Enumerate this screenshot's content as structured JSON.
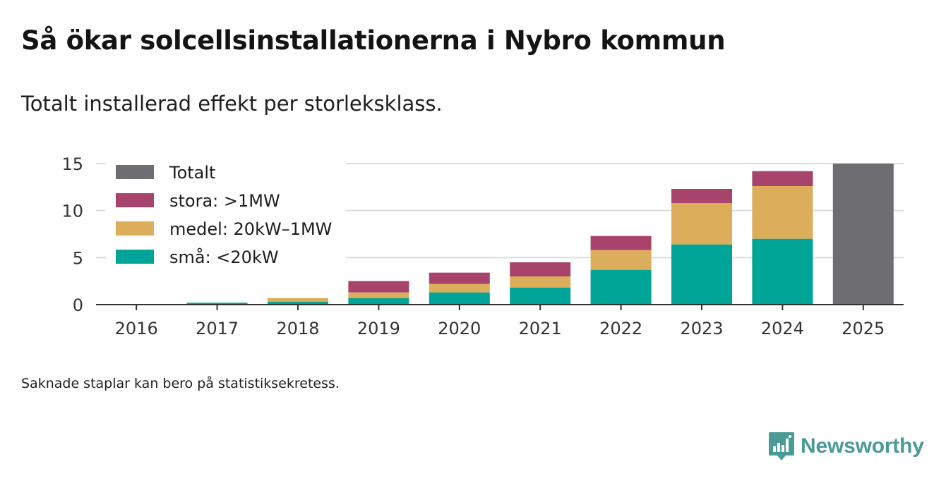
{
  "title": "Så ökar solcellsinstallationerna i Nybro kommun",
  "subtitle": "Totalt installerad effekt per storleksklass.",
  "note": "Saknade staplar kan bero på statistiksekretess.",
  "brand": "Newsworthy",
  "colors": {
    "total": "#6e6d72",
    "large": "#a8436b",
    "medium": "#dcae5c",
    "small": "#00a598",
    "grid": "#dddddd",
    "axis": "#333333",
    "brand": "#4a9a96"
  },
  "chart_data": {
    "type": "bar",
    "stacked": true,
    "title": "Så ökar solcellsinstallationerna i Nybro kommun",
    "subtitle": "Totalt installerad effekt per storleksklass.",
    "xlabel": "",
    "ylabel": "",
    "ylim": [
      0,
      15
    ],
    "yticks": [
      0,
      5,
      10,
      15
    ],
    "grid": true,
    "legend_position": "top-left",
    "categories": [
      "2016",
      "2017",
      "2018",
      "2019",
      "2020",
      "2021",
      "2022",
      "2023",
      "2024",
      "2025"
    ],
    "series": [
      {
        "name": "små: <20kW",
        "key": "small",
        "values": [
          0,
          0.2,
          0.3,
          0.7,
          1.3,
          1.8,
          3.7,
          6.4,
          7.0,
          null
        ]
      },
      {
        "name": "medel: 20kW–1MW",
        "key": "medium",
        "values": [
          0,
          0,
          0.4,
          0.6,
          0.9,
          1.2,
          2.1,
          4.4,
          5.6,
          null
        ]
      },
      {
        "name": "stora: >1MW",
        "key": "large",
        "values": [
          0,
          0,
          0,
          1.2,
          1.2,
          1.5,
          1.5,
          1.5,
          1.6,
          null
        ]
      },
      {
        "name": "Totalt",
        "key": "total",
        "values": [
          null,
          null,
          null,
          null,
          null,
          null,
          null,
          null,
          null,
          15
        ]
      }
    ],
    "legend": [
      {
        "label": "Totalt",
        "key": "total"
      },
      {
        "label": "stora: >1MW",
        "key": "large"
      },
      {
        "label": "medel: 20kW–1MW",
        "key": "medium"
      },
      {
        "label": "små: <20kW",
        "key": "small"
      }
    ]
  }
}
